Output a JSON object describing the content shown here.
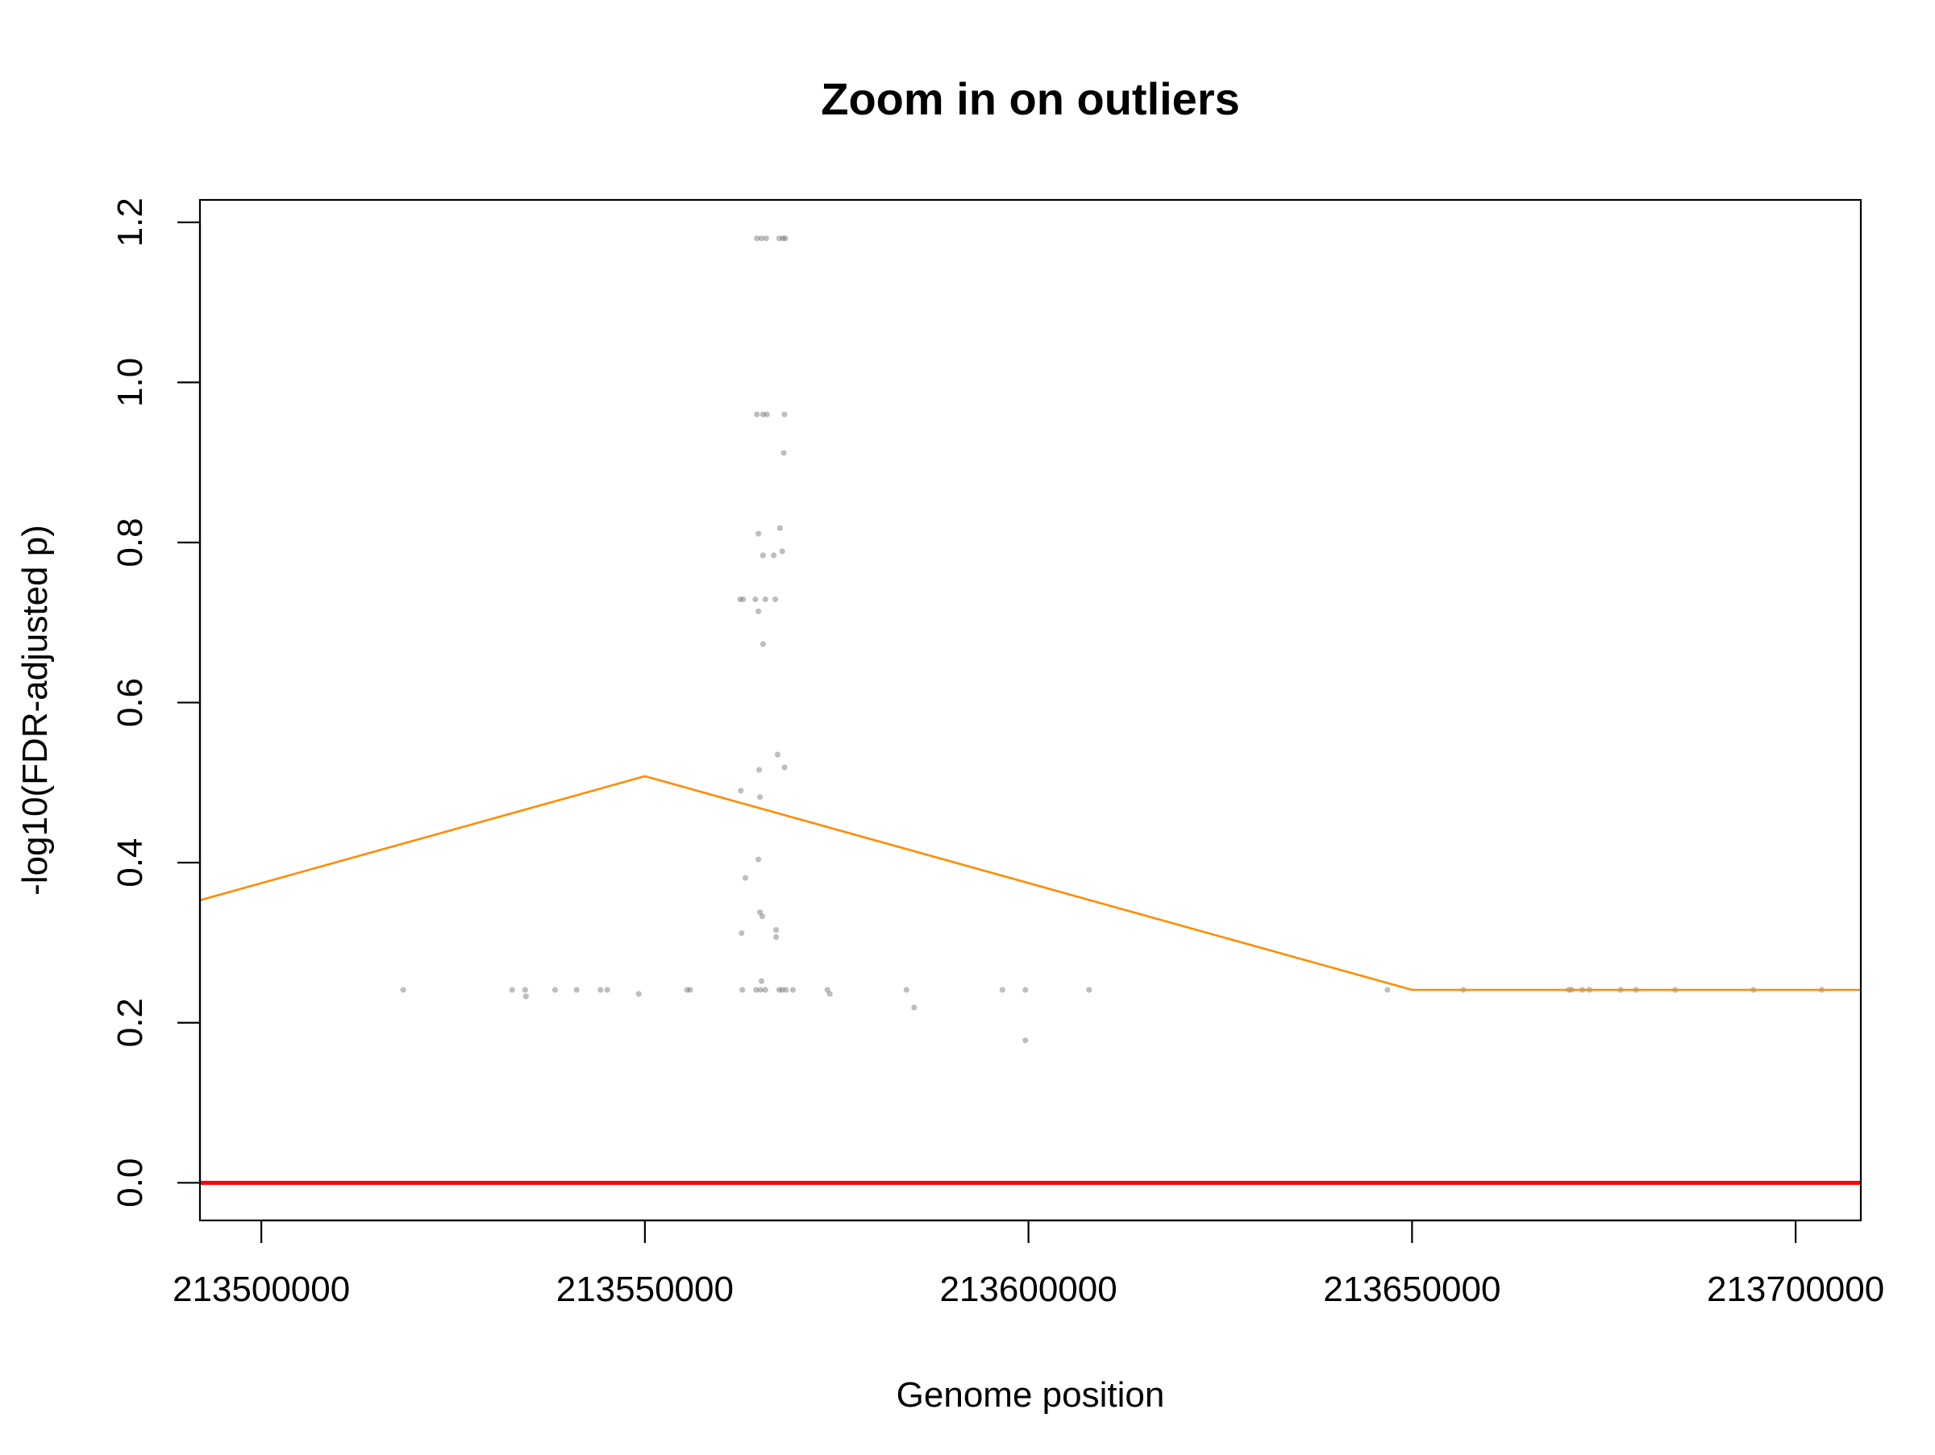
{
  "chart_data": {
    "type": "scatter",
    "title": "Zoom in on outliers",
    "xlabel": "Genome position",
    "ylabel": "-log10(FDR-adjusted p)",
    "xlim": [
      213492000,
      213708500
    ],
    "ylim": [
      -0.047,
      1.228
    ],
    "x_ticks": [
      213500000,
      213550000,
      213600000,
      213650000,
      213700000
    ],
    "x_tick_labels": [
      "213500000",
      "213550000",
      "213600000",
      "213650000",
      "213700000"
    ],
    "y_ticks": [
      0.0,
      0.2,
      0.4,
      0.6,
      0.8,
      1.0,
      1.2
    ],
    "y_tick_labels": [
      "0.0",
      "0.2",
      "0.4",
      "0.6",
      "0.8",
      "1.0",
      "1.2"
    ],
    "grid": false,
    "legend": "none",
    "colors": {
      "points": "#555555",
      "smooth_line": "#FF8C00",
      "threshold_line": "#FF0000",
      "axis": "#000000"
    },
    "threshold_line": {
      "y": 0.0
    },
    "smooth_line": {
      "x": [
        213492000,
        213550000,
        213650000,
        213708500
      ],
      "y": [
        0.353,
        0.508,
        0.241,
        0.241
      ]
    },
    "points": [
      {
        "x": 213564600,
        "y": 1.18
      },
      {
        "x": 213565200,
        "y": 1.18
      },
      {
        "x": 213565800,
        "y": 1.18
      },
      {
        "x": 213567500,
        "y": 1.18
      },
      {
        "x": 213568000,
        "y": 1.18
      },
      {
        "x": 213568300,
        "y": 1.18
      },
      {
        "x": 213564600,
        "y": 0.96
      },
      {
        "x": 213565400,
        "y": 0.96
      },
      {
        "x": 213565900,
        "y": 0.96
      },
      {
        "x": 213568200,
        "y": 0.96
      },
      {
        "x": 213568100,
        "y": 0.912
      },
      {
        "x": 213564800,
        "y": 0.811
      },
      {
        "x": 213567600,
        "y": 0.818
      },
      {
        "x": 213567900,
        "y": 0.789
      },
      {
        "x": 213565400,
        "y": 0.784
      },
      {
        "x": 213566800,
        "y": 0.784
      },
      {
        "x": 213562400,
        "y": 0.729
      },
      {
        "x": 213562800,
        "y": 0.729
      },
      {
        "x": 213564400,
        "y": 0.729
      },
      {
        "x": 213565700,
        "y": 0.729
      },
      {
        "x": 213567000,
        "y": 0.729
      },
      {
        "x": 213564800,
        "y": 0.714
      },
      {
        "x": 213565400,
        "y": 0.673
      },
      {
        "x": 213567300,
        "y": 0.535
      },
      {
        "x": 213568200,
        "y": 0.519
      },
      {
        "x": 213564900,
        "y": 0.516
      },
      {
        "x": 213562500,
        "y": 0.49
      },
      {
        "x": 213565000,
        "y": 0.482
      },
      {
        "x": 213564800,
        "y": 0.404
      },
      {
        "x": 213563100,
        "y": 0.381
      },
      {
        "x": 213565000,
        "y": 0.338
      },
      {
        "x": 213565300,
        "y": 0.333
      },
      {
        "x": 213562600,
        "y": 0.312
      },
      {
        "x": 213567100,
        "y": 0.316
      },
      {
        "x": 213567100,
        "y": 0.307
      },
      {
        "x": 213565200,
        "y": 0.252
      },
      {
        "x": 213518500,
        "y": 0.241
      },
      {
        "x": 213532700,
        "y": 0.241
      },
      {
        "x": 213534400,
        "y": 0.241
      },
      {
        "x": 213534500,
        "y": 0.233
      },
      {
        "x": 213538300,
        "y": 0.241
      },
      {
        "x": 213541100,
        "y": 0.241
      },
      {
        "x": 213544200,
        "y": 0.241
      },
      {
        "x": 213545100,
        "y": 0.241
      },
      {
        "x": 213549200,
        "y": 0.236
      },
      {
        "x": 213555500,
        "y": 0.241
      },
      {
        "x": 213555900,
        "y": 0.241
      },
      {
        "x": 213562700,
        "y": 0.241
      },
      {
        "x": 213564500,
        "y": 0.241
      },
      {
        "x": 213565100,
        "y": 0.241
      },
      {
        "x": 213565700,
        "y": 0.241
      },
      {
        "x": 213567500,
        "y": 0.241
      },
      {
        "x": 213567900,
        "y": 0.241
      },
      {
        "x": 213568400,
        "y": 0.241
      },
      {
        "x": 213569300,
        "y": 0.241
      },
      {
        "x": 213573800,
        "y": 0.241
      },
      {
        "x": 213574100,
        "y": 0.236
      },
      {
        "x": 213584100,
        "y": 0.241
      },
      {
        "x": 213585100,
        "y": 0.219
      },
      {
        "x": 213596600,
        "y": 0.241
      },
      {
        "x": 213599600,
        "y": 0.241
      },
      {
        "x": 213599600,
        "y": 0.178
      },
      {
        "x": 213607900,
        "y": 0.241
      },
      {
        "x": 213646800,
        "y": 0.241
      },
      {
        "x": 213656700,
        "y": 0.241
      },
      {
        "x": 213670400,
        "y": 0.241
      },
      {
        "x": 213670800,
        "y": 0.241
      },
      {
        "x": 213672200,
        "y": 0.241
      },
      {
        "x": 213673100,
        "y": 0.241
      },
      {
        "x": 213677200,
        "y": 0.241
      },
      {
        "x": 213679200,
        "y": 0.241
      },
      {
        "x": 213684300,
        "y": 0.241
      },
      {
        "x": 213694500,
        "y": 0.241
      },
      {
        "x": 213703400,
        "y": 0.241
      }
    ]
  }
}
